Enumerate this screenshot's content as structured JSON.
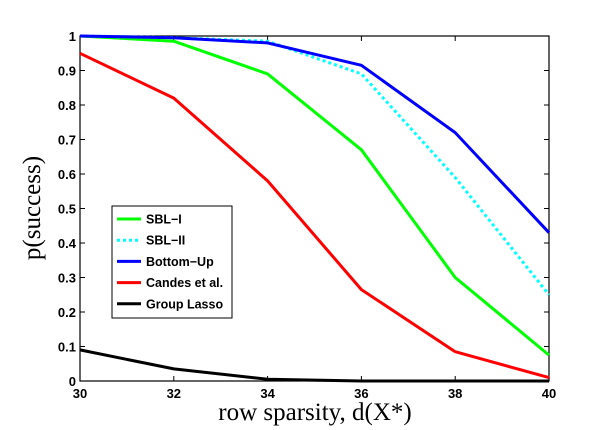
{
  "chart_data": {
    "type": "line",
    "xlabel": "row sparsity, d(X*)",
    "ylabel": "p(success)",
    "xlim": [
      30,
      40
    ],
    "ylim": [
      0,
      1
    ],
    "x_ticks": [
      "30",
      "32",
      "34",
      "36",
      "38",
      "40"
    ],
    "y_ticks": [
      "0",
      "0.1",
      "0.2",
      "0.3",
      "0.4",
      "0.5",
      "0.6",
      "0.7",
      "0.8",
      "0.9",
      "1"
    ],
    "grid": false,
    "legend_position": "lower-left",
    "x": [
      30,
      32,
      34,
      36,
      38,
      40
    ],
    "series": [
      {
        "name": "SBL−I",
        "color": "#00ff00",
        "style": "solid",
        "values": [
          1.0,
          0.985,
          0.89,
          0.67,
          0.3,
          0.075
        ]
      },
      {
        "name": "SBL−II",
        "color": "#00ffff",
        "style": "dotted",
        "values": [
          1.0,
          0.995,
          0.985,
          0.89,
          0.59,
          0.25
        ]
      },
      {
        "name": "Bottom−Up",
        "color": "#0000ff",
        "style": "solid",
        "values": [
          1.0,
          0.995,
          0.98,
          0.915,
          0.72,
          0.43
        ]
      },
      {
        "name": "Candes et al.",
        "color": "#ff0000",
        "style": "solid",
        "values": [
          0.95,
          0.82,
          0.58,
          0.265,
          0.085,
          0.01
        ]
      },
      {
        "name": "Group Lasso",
        "color": "#000000",
        "style": "solid",
        "values": [
          0.09,
          0.035,
          0.005,
          0.0,
          0.0,
          0.0
        ]
      }
    ]
  }
}
